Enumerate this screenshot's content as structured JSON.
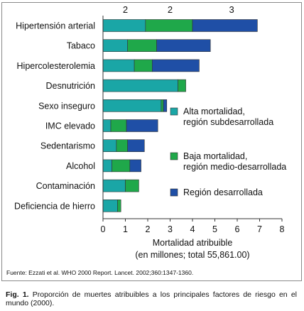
{
  "chart_data": {
    "type": "bar",
    "stacked": true,
    "orientation": "horizontal",
    "categories": [
      "Hipertensión arterial",
      "Tabaco",
      "Hipercolesterolemia",
      "Desnutrición",
      "Sexo inseguro",
      "IMC elevado",
      "Sedentarismo",
      "Alcohol",
      "Contaminación",
      "Deficiencia de hierro"
    ],
    "series": [
      {
        "name": "Alta mortalidad, región subdesarrollada",
        "name_lines": [
          "Alta mortalidad,",
          "región subdesarrollada"
        ],
        "color": "#1aa6a6",
        "values": [
          1.9,
          1.1,
          1.4,
          3.35,
          2.6,
          0.35,
          0.6,
          0.4,
          1.0,
          0.65
        ]
      },
      {
        "name": "Baja mortalidad, región medio-desarrollada",
        "name_lines": [
          "Baja mortalidad,",
          "región medio-desarrollada"
        ],
        "color": "#1fa84a",
        "values": [
          2.1,
          1.3,
          0.8,
          0.35,
          0.1,
          0.7,
          0.5,
          0.8,
          0.6,
          0.15
        ]
      },
      {
        "name": "Región desarrollada",
        "name_lines": [
          "Región desarrollada"
        ],
        "color": "#1f4fa6",
        "values": [
          2.9,
          2.4,
          2.1,
          0.0,
          0.15,
          1.4,
          0.75,
          0.5,
          0.0,
          0.0
        ]
      }
    ],
    "xlim": [
      0,
      8
    ],
    "xticks": [
      "0",
      "1",
      "2",
      "3",
      "4",
      "5",
      "6",
      "7",
      "8"
    ],
    "xlabel_lines": [
      "Mortalidad atribuible",
      "(en millones; total 55,861.00)"
    ],
    "top_labels": [
      {
        "text": "2",
        "x": 1
      },
      {
        "text": "2",
        "x": 3
      },
      {
        "text": "3",
        "x": 5.75
      }
    ],
    "legend_position": "right",
    "grid": false
  },
  "source": "Fuente: Ezzati et al. WHO 2000 Report. Lancet. 2002;360:1347-1360.",
  "caption": {
    "label": "Fig. 1.",
    "text": " Proporción de muertes atribuibles a los principales factores de riesgo en el mundo (2000)."
  }
}
